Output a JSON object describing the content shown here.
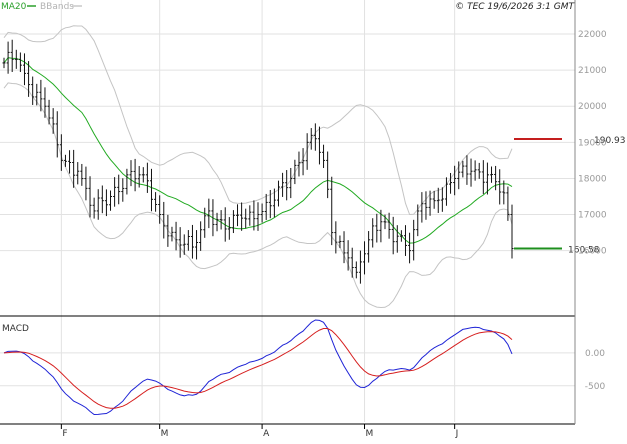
{
  "header": {
    "copyright": "© TEC 19/6/2026 3:1 GMT",
    "legend": [
      {
        "label": "MA20",
        "color": "#2ca02c"
      },
      {
        "label": "BBands",
        "color": "#b3b3b3"
      }
    ]
  },
  "colors": {
    "price": "#111111",
    "ma20": "#22aa22",
    "bbands": "#c4c4c4",
    "macd": "#1f24d6",
    "signal": "#d61f1f",
    "grid": "#e2e2e2",
    "resistance": "#c41e1e",
    "support": "#1e8f1e"
  },
  "chart_data": [
    {
      "type": "line",
      "panel": "price",
      "y_tick_labels": [
        "22000",
        "21000",
        "20000",
        "19000",
        "18000",
        "17000",
        "16000"
      ],
      "y_ticks": [
        22000,
        21000,
        20000,
        19000,
        18000,
        17000,
        16000
      ],
      "ylim": [
        14300,
        22500
      ],
      "x_tick_labels": [
        "F",
        "M",
        "A",
        "M",
        "J"
      ],
      "x_tick_index": [
        14,
        38,
        63,
        88,
        110
      ],
      "n_bars": 125,
      "close_anchors": [
        {
          "i": 0,
          "v": 21200
        },
        {
          "i": 3,
          "v": 21300
        },
        {
          "i": 6,
          "v": 20600
        },
        {
          "i": 10,
          "v": 20000
        },
        {
          "i": 14,
          "v": 18500
        },
        {
          "i": 18,
          "v": 18200
        },
        {
          "i": 22,
          "v": 17100
        },
        {
          "i": 26,
          "v": 17500
        },
        {
          "i": 30,
          "v": 18100
        },
        {
          "i": 34,
          "v": 18100
        },
        {
          "i": 38,
          "v": 17000
        },
        {
          "i": 42,
          "v": 16300
        },
        {
          "i": 46,
          "v": 16100
        },
        {
          "i": 50,
          "v": 17100
        },
        {
          "i": 54,
          "v": 16600
        },
        {
          "i": 58,
          "v": 16900
        },
        {
          "i": 62,
          "v": 17000
        },
        {
          "i": 66,
          "v": 17400
        },
        {
          "i": 70,
          "v": 18000
        },
        {
          "i": 74,
          "v": 19000
        },
        {
          "i": 76,
          "v": 19100
        },
        {
          "i": 78,
          "v": 18500
        },
        {
          "i": 80,
          "v": 16500
        },
        {
          "i": 84,
          "v": 15800
        },
        {
          "i": 86,
          "v": 15400
        },
        {
          "i": 89,
          "v": 16300
        },
        {
          "i": 92,
          "v": 16800
        },
        {
          "i": 96,
          "v": 16400
        },
        {
          "i": 99,
          "v": 16000
        },
        {
          "i": 102,
          "v": 17300
        },
        {
          "i": 106,
          "v": 17400
        },
        {
          "i": 110,
          "v": 18000
        },
        {
          "i": 114,
          "v": 18200
        },
        {
          "i": 118,
          "v": 18100
        },
        {
          "i": 122,
          "v": 17600
        },
        {
          "i": 123,
          "v": 17000
        },
        {
          "i": 124,
          "v": 16058
        }
      ],
      "resistance": {
        "value": 19093,
        "label": "190.93"
      },
      "support": {
        "value": 16058,
        "label": "160.58"
      },
      "series": [
        {
          "name": "MA20",
          "window": 20
        },
        {
          "name": "BBands",
          "window": 20,
          "k": 2
        }
      ]
    },
    {
      "type": "line",
      "panel": "macd",
      "title": "MACD",
      "y_tick_labels": [
        "0.00",
        "-500"
      ],
      "y_ticks": [
        0,
        -500
      ],
      "ylim": [
        -1050,
        500
      ],
      "series": [
        {
          "name": "MACD",
          "fast": 12,
          "slow": 26
        },
        {
          "name": "Signal",
          "span": 9
        }
      ]
    }
  ]
}
